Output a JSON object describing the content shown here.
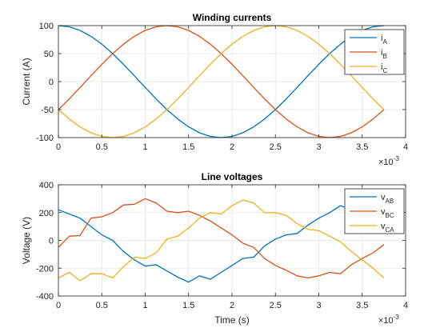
{
  "chart_data": [
    {
      "type": "line",
      "title": "Winding currents",
      "xlabel": "",
      "ylabel": "Current (A)",
      "xlim": [
        0,
        0.004
      ],
      "ylim": [
        -100,
        100
      ],
      "xticks": [
        0,
        0.0005,
        0.001,
        0.0015,
        0.002,
        0.0025,
        0.003,
        0.0035,
        0.004
      ],
      "xtick_labels": [
        "0",
        "0.5",
        "1",
        "1.5",
        "2",
        "2.5",
        "3",
        "3.5",
        "4"
      ],
      "yticks": [
        -100,
        -50,
        0,
        50,
        100
      ],
      "ytick_labels": [
        "-100",
        "-50",
        "0",
        "50",
        "100"
      ],
      "x_exponent_base": "×10",
      "x_exponent_power": "-3",
      "grid": true,
      "legend_position": "top-right",
      "colors": [
        "#0072BD",
        "#D95319",
        "#EDB120"
      ],
      "x": [
        0,
        0.000125,
        0.00025,
        0.000375,
        0.0005,
        0.000625,
        0.00075,
        0.000875,
        0.001,
        0.001125,
        0.00125,
        0.001375,
        0.0015,
        0.001625,
        0.00175,
        0.001875,
        0.002,
        0.002125,
        0.00225,
        0.002375,
        0.0025,
        0.002625,
        0.00275,
        0.002875,
        0.003,
        0.003125,
        0.00325,
        0.003375,
        0.0035,
        0.003625,
        0.00375
      ],
      "series": [
        {
          "name_main": "i",
          "name_sub": "A",
          "values": [
            100,
            97.8,
            91.4,
            80.9,
            66.9,
            50,
            30.9,
            10.5,
            -10.5,
            -30.9,
            -50,
            -66.9,
            -80.9,
            -91.4,
            -97.8,
            -100,
            -97.8,
            -91.4,
            -80.9,
            -66.9,
            -50,
            -30.9,
            -10.5,
            10.5,
            30.9,
            50,
            66.9,
            80.9,
            91.4,
            97.8,
            100
          ]
        },
        {
          "name_main": "i",
          "name_sub": "B",
          "values": [
            -50,
            -30.9,
            -10.5,
            10.5,
            30.9,
            50,
            66.9,
            80.9,
            91.4,
            97.8,
            100,
            97.8,
            91.4,
            80.9,
            66.9,
            50,
            30.9,
            10.5,
            -10.5,
            -30.9,
            -50,
            -66.9,
            -80.9,
            -91.4,
            -97.8,
            -100,
            -97.8,
            -91.4,
            -80.9,
            -66.9,
            -50
          ]
        },
        {
          "name_main": "i",
          "name_sub": "C",
          "values": [
            -50,
            -66.9,
            -80.9,
            -91.4,
            -97.8,
            -100,
            -97.8,
            -91.4,
            -80.9,
            -66.9,
            -50,
            -30.9,
            -10.5,
            10.5,
            30.9,
            50,
            66.9,
            80.9,
            91.4,
            97.8,
            100,
            97.8,
            91.4,
            80.9,
            66.9,
            50,
            30.9,
            10.5,
            -10.5,
            -30.9,
            -50
          ]
        }
      ]
    },
    {
      "type": "line",
      "title": "Line voltages",
      "xlabel": "Time (s)",
      "ylabel": "Voltage (V)",
      "xlim": [
        0,
        0.004
      ],
      "ylim": [
        -400,
        400
      ],
      "xticks": [
        0,
        0.0005,
        0.001,
        0.0015,
        0.002,
        0.0025,
        0.003,
        0.0035,
        0.004
      ],
      "xtick_labels": [
        "0",
        "0.5",
        "1",
        "1.5",
        "2",
        "2.5",
        "3",
        "3.5",
        "4"
      ],
      "yticks": [
        -400,
        -200,
        0,
        200,
        400
      ],
      "ytick_labels": [
        "-400",
        "-200",
        "0",
        "200",
        "400"
      ],
      "x_exponent_base": "×10",
      "x_exponent_power": "-3",
      "grid": true,
      "legend_position": "top-right",
      "colors": [
        "#0072BD",
        "#D95319",
        "#EDB120"
      ],
      "x": [
        0,
        0.000125,
        0.00025,
        0.000375,
        0.0005,
        0.000625,
        0.00075,
        0.000875,
        0.001,
        0.001125,
        0.00125,
        0.001375,
        0.0015,
        0.001625,
        0.00175,
        0.001875,
        0.002,
        0.002125,
        0.00225,
        0.002375,
        0.0025,
        0.002625,
        0.00275,
        0.002875,
        0.003,
        0.003125,
        0.00325,
        0.003375,
        0.0035,
        0.003625,
        0.00375
      ],
      "series": [
        {
          "name_main": "v",
          "name_sub": "AB",
          "values": [
            220,
            190,
            160,
            100,
            40,
            0,
            -80,
            -140,
            -185,
            -175,
            -220,
            -265,
            -300,
            -255,
            -280,
            -230,
            -180,
            -130,
            -120,
            -40,
            10,
            40,
            50,
            110,
            160,
            200,
            250,
            220,
            250,
            230,
            250
          ]
        },
        {
          "name_main": "v",
          "name_sub": "BC",
          "values": [
            -50,
            30,
            35,
            160,
            170,
            200,
            255,
            260,
            300,
            270,
            210,
            200,
            210,
            180,
            140,
            90,
            40,
            -20,
            -50,
            -130,
            -180,
            -215,
            -255,
            -270,
            -255,
            -230,
            -240,
            -175,
            -130,
            -90,
            -30
          ]
        },
        {
          "name_main": "v",
          "name_sub": "CA",
          "values": [
            -270,
            -230,
            -290,
            -240,
            -240,
            -270,
            -190,
            -120,
            -130,
            -90,
            10,
            30,
            90,
            160,
            200,
            190,
            250,
            290,
            270,
            200,
            200,
            180,
            120,
            80,
            70,
            30,
            -10,
            -80,
            -140,
            -200,
            -270
          ]
        }
      ]
    }
  ]
}
